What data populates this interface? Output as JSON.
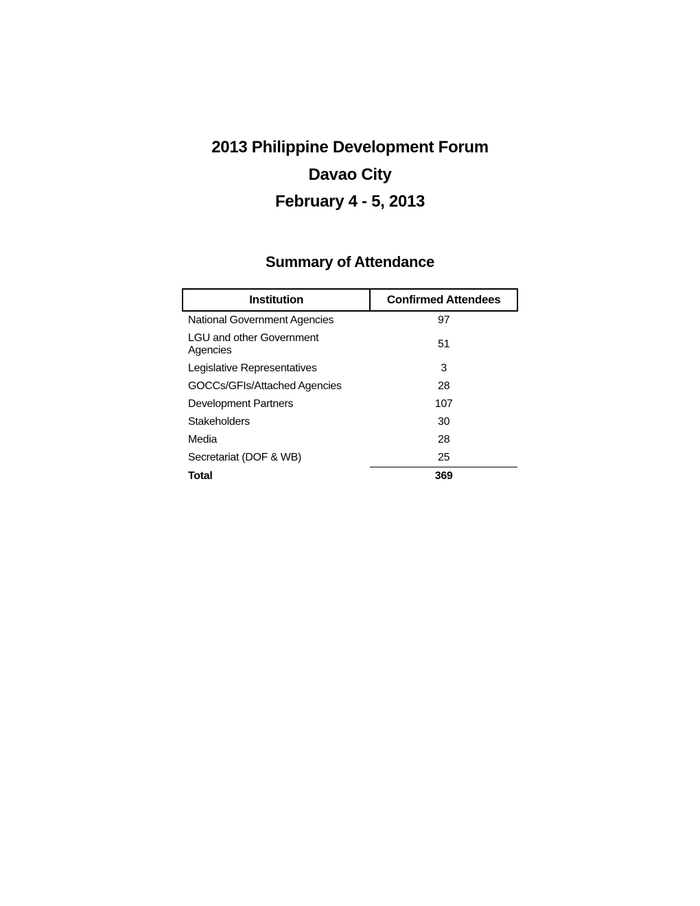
{
  "header": {
    "line1": "2013 Philippine Development Forum",
    "line2": "Davao City",
    "line3": "February 4 - 5, 2013"
  },
  "subtitle": "Summary of Attendance",
  "table": {
    "columns": {
      "institution": "Institution",
      "attendees": "Confirmed Attendees"
    },
    "rows": [
      {
        "institution": "National Government Agencies",
        "attendees": "97"
      },
      {
        "institution": "LGU and other Government Agencies",
        "attendees": "51"
      },
      {
        "institution": "Legislative Representatives",
        "attendees": "3"
      },
      {
        "institution": "GOCCs/GFIs/Attached Agencies",
        "attendees": "28"
      },
      {
        "institution": "Development Partners",
        "attendees": "107"
      },
      {
        "institution": "Stakeholders",
        "attendees": "30"
      },
      {
        "institution": "Media",
        "attendees": "28"
      },
      {
        "institution": "Secretariat (DOF & WB)",
        "attendees": "25"
      }
    ],
    "total": {
      "label": "Total",
      "value": "369"
    }
  }
}
